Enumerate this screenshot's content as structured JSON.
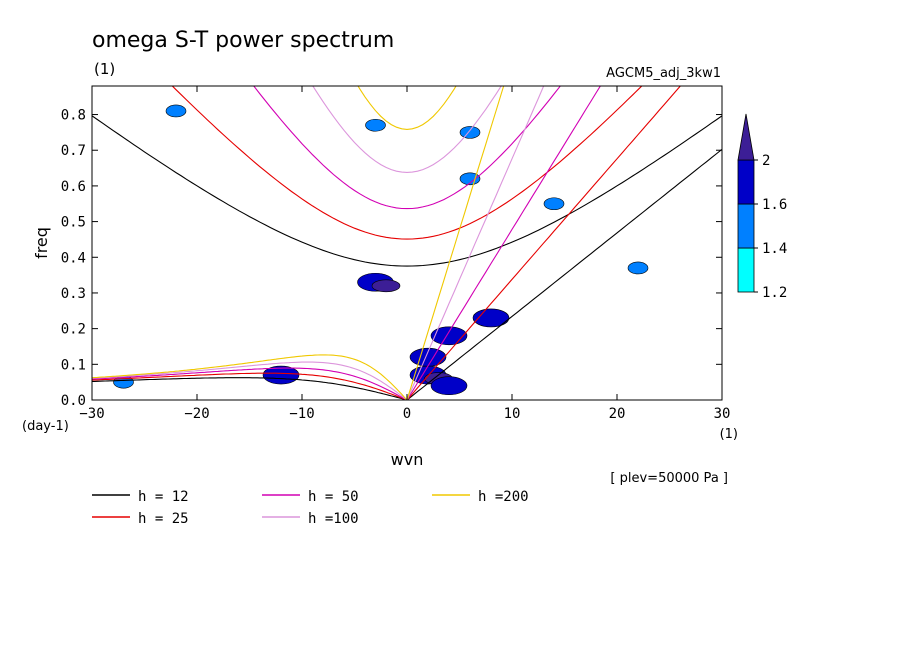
{
  "chart_data": {
    "type": "contour",
    "title": "omega S-T power spectrum",
    "subtitle": "(1)",
    "run_label": "AGCM5_adj_3kw1",
    "xlabel": "wvn",
    "ylabel": "freq",
    "x_unit": "(1)",
    "y_unit": "(day-1)",
    "xlim": [
      -30,
      30
    ],
    "ylim": [
      0,
      0.88
    ],
    "xticks": [
      -30,
      -20,
      -10,
      0,
      10,
      20,
      30
    ],
    "yticks": [
      0.0,
      0.1,
      0.2,
      0.3,
      0.4,
      0.5,
      0.6,
      0.7,
      0.8
    ],
    "level_note": "[ plev=50000 Pa ]",
    "colorbar": {
      "levels": [
        1.2,
        1.4,
        1.6,
        2
      ],
      "labels": [
        "1.2",
        "1.4",
        "1.6",
        "2"
      ],
      "colors": [
        "#00ffff",
        "#0080ff",
        "#0000c8",
        "#3c1e96"
      ]
    },
    "shaded_regions": [
      {
        "x": -3,
        "y": 0.33,
        "level": 1.6
      },
      {
        "x": -2,
        "y": 0.32,
        "level": 2
      },
      {
        "x": 2,
        "y": 0.07,
        "level": 1.6
      },
      {
        "x": 3,
        "y": 0.06,
        "level": 2
      },
      {
        "x": 4,
        "y": 0.04,
        "level": 1.6
      },
      {
        "x": 2,
        "y": 0.12,
        "level": 1.6
      },
      {
        "x": 4,
        "y": 0.18,
        "level": 1.6
      },
      {
        "x": 6,
        "y": 0.62,
        "level": 1.4
      },
      {
        "x": 6,
        "y": 0.75,
        "level": 1.4
      },
      {
        "x": -12,
        "y": 0.07,
        "level": 1.6
      },
      {
        "x": -27,
        "y": 0.05,
        "level": 1.4
      },
      {
        "x": -3,
        "y": 0.77,
        "level": 1.4
      },
      {
        "x": -22,
        "y": 0.81,
        "level": 1.4
      },
      {
        "x": 14,
        "y": 0.55,
        "level": 1.4
      },
      {
        "x": 8,
        "y": 0.23,
        "level": 1.6
      },
      {
        "x": 22,
        "y": 0.37,
        "level": 1.4
      }
    ],
    "dispersion_curves": [
      {
        "label": "h = 12",
        "h": 12,
        "color": "#000000"
      },
      {
        "label": "h = 25",
        "h": 25,
        "color": "#e60000"
      },
      {
        "label": "h = 50",
        "h": 50,
        "color": "#d200b4"
      },
      {
        "label": "h =100",
        "h": 100,
        "color": "#dc96dc"
      },
      {
        "label": "h =200",
        "h": 200,
        "color": "#f0c800"
      }
    ]
  }
}
